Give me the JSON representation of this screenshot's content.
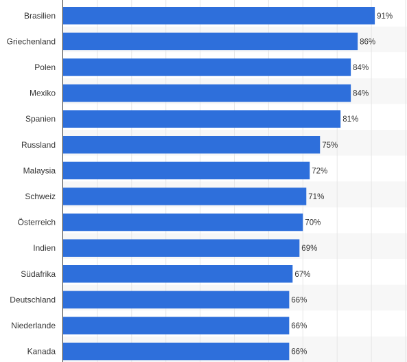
{
  "chart_data": {
    "type": "bar",
    "orientation": "horizontal",
    "categories": [
      "Brasilien",
      "Griechenland",
      "Polen",
      "Mexiko",
      "Spanien",
      "Russland",
      "Malaysia",
      "Schweiz",
      "Österreich",
      "Indien",
      "Südafrika",
      "Deutschland",
      "Niederlande",
      "Kanada"
    ],
    "values": [
      91,
      86,
      84,
      84,
      81,
      75,
      72,
      71,
      70,
      69,
      67,
      66,
      66,
      66
    ],
    "value_labels": [
      "91%",
      "86%",
      "84%",
      "84%",
      "81%",
      "75%",
      "72%",
      "71%",
      "70%",
      "69%",
      "67%",
      "66%",
      "66%",
      "66%"
    ],
    "unit": "%",
    "xlim": [
      0,
      100
    ],
    "grid": true,
    "colors": {
      "bar": "#2e6fdb",
      "grid": "#e6e6e6",
      "axis": "#333333",
      "band": "#f7f7f7"
    }
  }
}
